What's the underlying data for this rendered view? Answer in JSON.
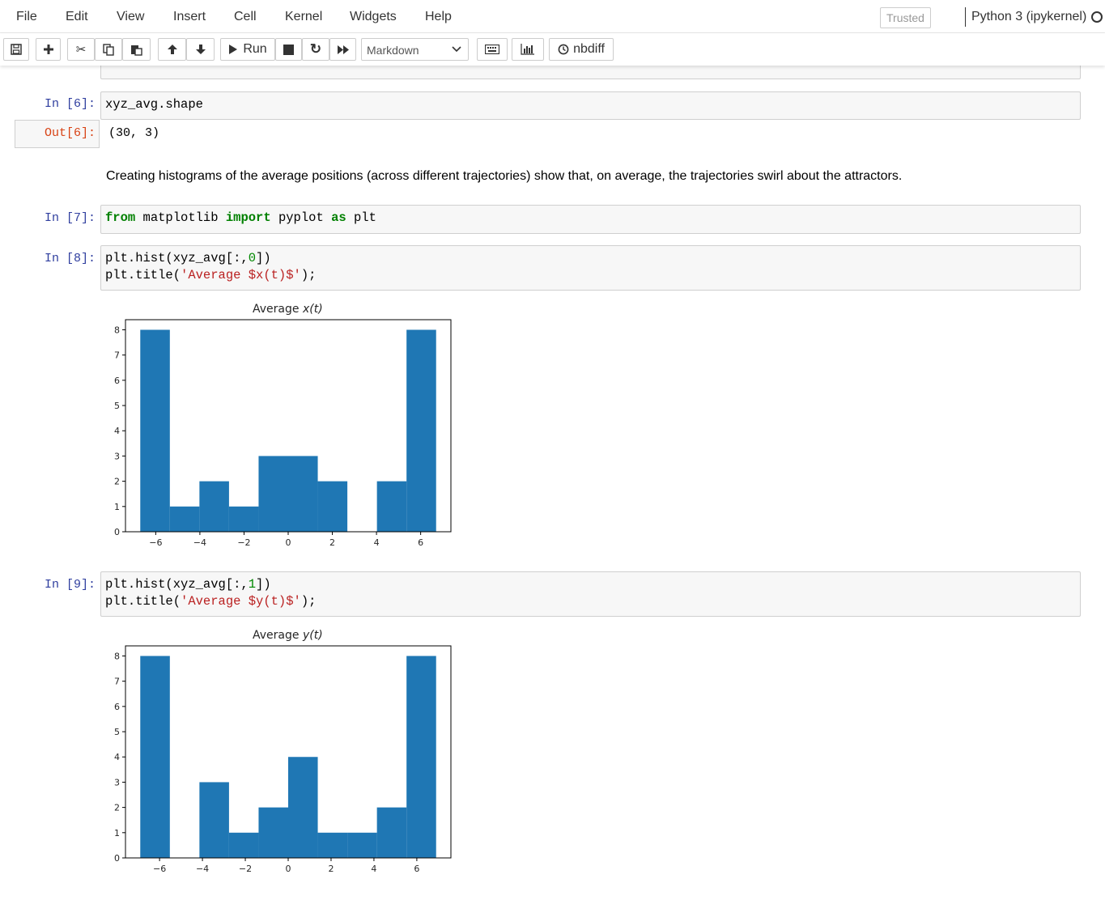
{
  "menubar": {
    "items": [
      "File",
      "Edit",
      "View",
      "Insert",
      "Cell",
      "Kernel",
      "Widgets",
      "Help"
    ],
    "trusted": "Trusted",
    "kernel": "Python 3 (ipykernel)"
  },
  "toolbar": {
    "run_label": "Run",
    "cell_type": "Markdown",
    "nbdiff_label": "nbdiff"
  },
  "cells": {
    "cell6": {
      "prompt": "In [6]:",
      "code": "xyz_avg.shape",
      "out_prompt": "Out[6]:",
      "output": "(30, 3)"
    },
    "markdown": {
      "text": "Creating histograms of the average positions (across different trajectories) show that, on average, the trajectories swirl about the attractors."
    },
    "cell7": {
      "prompt": "In [7]:",
      "kw1": "from",
      "mid1": " matplotlib ",
      "kw2": "import",
      "mid2": " pyplot ",
      "kw3": "as",
      "end": " plt"
    },
    "cell8": {
      "prompt": "In [8]:",
      "l1a": "plt.hist(xyz_avg[:,",
      "l1n": "0",
      "l1b": "])",
      "l2a": "plt.title(",
      "l2s": "'Average $x(t)$'",
      "l2b": ");"
    },
    "cell9": {
      "prompt": "In [9]:",
      "l1a": "plt.hist(xyz_avg[:,",
      "l1n": "1",
      "l1b": "])",
      "l2a": "plt.title(",
      "l2s": "'Average $y(t)$'",
      "l2b": ");"
    }
  },
  "colors": {
    "bar": "#1f77b4",
    "in_prompt": "#303f9f",
    "out_prompt": "#d84315"
  },
  "chart_data": [
    {
      "type": "bar",
      "title_prefix": "Average ",
      "title_var": "x(t)",
      "bin_edges": [
        -6.7,
        -5.36,
        -4.02,
        -2.68,
        -1.34,
        0.0,
        1.34,
        2.68,
        4.02,
        5.36,
        6.7
      ],
      "values": [
        8,
        1,
        2,
        1,
        3,
        3,
        2,
        0,
        2,
        8
      ],
      "xticks": [
        -6,
        -4,
        -2,
        0,
        2,
        4,
        6
      ],
      "xtick_labels": [
        "−6",
        "−4",
        "−2",
        "0",
        "2",
        "4",
        "6"
      ],
      "yticks": [
        0,
        1,
        2,
        3,
        4,
        5,
        6,
        7,
        8
      ],
      "xlim": [
        -7.37,
        7.37
      ],
      "ylim": [
        0,
        8.4
      ]
    },
    {
      "type": "bar",
      "title_prefix": "Average ",
      "title_var": "y(t)",
      "bin_edges": [
        -6.9,
        -5.52,
        -4.14,
        -2.76,
        -1.38,
        0.0,
        1.38,
        2.76,
        4.14,
        5.52,
        6.9
      ],
      "values": [
        8,
        0,
        3,
        1,
        2,
        4,
        1,
        1,
        2,
        8
      ],
      "xticks": [
        -6,
        -4,
        -2,
        0,
        2,
        4,
        6
      ],
      "xtick_labels": [
        "−6",
        "−4",
        "−2",
        "0",
        "2",
        "4",
        "6"
      ],
      "yticks": [
        0,
        1,
        2,
        3,
        4,
        5,
        6,
        7,
        8
      ],
      "xlim": [
        -7.59,
        7.59
      ],
      "ylim": [
        0,
        8.4
      ]
    }
  ]
}
